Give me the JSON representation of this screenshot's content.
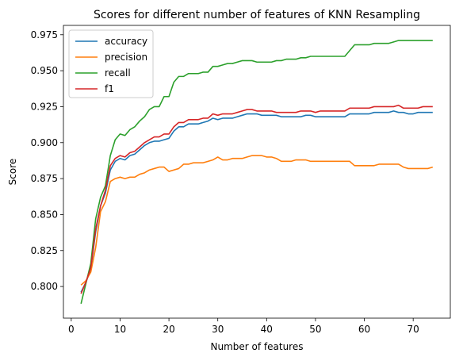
{
  "chart_data": {
    "type": "line",
    "title": "Scores for different number of features of KNN Resampling",
    "xlabel": "Number of features",
    "ylabel": "Score",
    "xlim": [
      -1.6,
      77.6
    ],
    "ylim": [
      0.778,
      0.9815
    ],
    "xticks": [
      0,
      10,
      20,
      30,
      40,
      50,
      60,
      70
    ],
    "yticks": [
      0.8,
      0.825,
      0.85,
      0.875,
      0.9,
      0.925,
      0.95,
      0.975
    ],
    "grid": false,
    "legend_position": "upper-left",
    "x": [
      2,
      3,
      4,
      5,
      6,
      7,
      8,
      9,
      10,
      11,
      12,
      13,
      14,
      15,
      16,
      17,
      18,
      19,
      20,
      21,
      22,
      23,
      24,
      25,
      26,
      27,
      28,
      29,
      30,
      31,
      32,
      33,
      34,
      35,
      36,
      37,
      38,
      39,
      40,
      41,
      42,
      43,
      44,
      45,
      46,
      47,
      48,
      49,
      50,
      51,
      52,
      53,
      54,
      55,
      56,
      57,
      58,
      59,
      60,
      61,
      62,
      63,
      64,
      65,
      66,
      67,
      68,
      69,
      70,
      71,
      72,
      73,
      74
    ],
    "series": [
      {
        "name": "accuracy",
        "color": "#1f77b4",
        "values": [
          0.796,
          0.803,
          0.812,
          0.838,
          0.856,
          0.865,
          0.881,
          0.887,
          0.889,
          0.888,
          0.891,
          0.892,
          0.895,
          0.898,
          0.9,
          0.901,
          0.901,
          0.902,
          0.903,
          0.908,
          0.911,
          0.911,
          0.913,
          0.913,
          0.913,
          0.914,
          0.915,
          0.917,
          0.916,
          0.917,
          0.917,
          0.917,
          0.918,
          0.919,
          0.92,
          0.92,
          0.92,
          0.919,
          0.919,
          0.919,
          0.919,
          0.918,
          0.918,
          0.918,
          0.918,
          0.918,
          0.919,
          0.919,
          0.918,
          0.918,
          0.918,
          0.918,
          0.918,
          0.918,
          0.918,
          0.92,
          0.92,
          0.92,
          0.92,
          0.92,
          0.921,
          0.921,
          0.921,
          0.921,
          0.922,
          0.921,
          0.921,
          0.92,
          0.92,
          0.921,
          0.921,
          0.921,
          0.921
        ]
      },
      {
        "name": "precision",
        "color": "#ff7f0e",
        "values": [
          0.801,
          0.804,
          0.81,
          0.827,
          0.852,
          0.859,
          0.873,
          0.875,
          0.876,
          0.875,
          0.876,
          0.876,
          0.878,
          0.879,
          0.881,
          0.882,
          0.883,
          0.883,
          0.88,
          0.881,
          0.882,
          0.885,
          0.885,
          0.886,
          0.886,
          0.886,
          0.887,
          0.888,
          0.89,
          0.888,
          0.888,
          0.889,
          0.889,
          0.889,
          0.89,
          0.891,
          0.891,
          0.891,
          0.89,
          0.89,
          0.889,
          0.887,
          0.887,
          0.887,
          0.888,
          0.888,
          0.888,
          0.887,
          0.887,
          0.887,
          0.887,
          0.887,
          0.887,
          0.887,
          0.887,
          0.887,
          0.884,
          0.884,
          0.884,
          0.884,
          0.884,
          0.885,
          0.885,
          0.885,
          0.885,
          0.885,
          0.883,
          0.882,
          0.882,
          0.882,
          0.882,
          0.882,
          0.883
        ]
      },
      {
        "name": "recall",
        "color": "#2ca02c",
        "values": [
          0.788,
          0.802,
          0.816,
          0.847,
          0.862,
          0.87,
          0.891,
          0.902,
          0.906,
          0.905,
          0.909,
          0.911,
          0.915,
          0.918,
          0.923,
          0.925,
          0.925,
          0.932,
          0.932,
          0.942,
          0.946,
          0.946,
          0.948,
          0.948,
          0.948,
          0.949,
          0.949,
          0.953,
          0.953,
          0.954,
          0.955,
          0.955,
          0.956,
          0.957,
          0.957,
          0.957,
          0.956,
          0.956,
          0.956,
          0.956,
          0.957,
          0.957,
          0.958,
          0.958,
          0.958,
          0.959,
          0.959,
          0.96,
          0.96,
          0.96,
          0.96,
          0.96,
          0.96,
          0.96,
          0.96,
          0.964,
          0.968,
          0.968,
          0.968,
          0.968,
          0.969,
          0.969,
          0.969,
          0.969,
          0.97,
          0.971,
          0.971,
          0.971,
          0.971,
          0.971,
          0.971,
          0.971,
          0.971
        ]
      },
      {
        "name": "f1",
        "color": "#d62728",
        "values": [
          0.795,
          0.803,
          0.813,
          0.84,
          0.856,
          0.867,
          0.884,
          0.889,
          0.891,
          0.89,
          0.893,
          0.894,
          0.897,
          0.9,
          0.902,
          0.904,
          0.904,
          0.906,
          0.906,
          0.911,
          0.914,
          0.914,
          0.916,
          0.916,
          0.916,
          0.917,
          0.917,
          0.92,
          0.919,
          0.92,
          0.92,
          0.92,
          0.921,
          0.922,
          0.923,
          0.923,
          0.922,
          0.922,
          0.922,
          0.922,
          0.921,
          0.921,
          0.921,
          0.921,
          0.921,
          0.922,
          0.922,
          0.922,
          0.921,
          0.922,
          0.922,
          0.922,
          0.922,
          0.922,
          0.922,
          0.924,
          0.924,
          0.924,
          0.924,
          0.924,
          0.925,
          0.925,
          0.925,
          0.925,
          0.925,
          0.926,
          0.924,
          0.924,
          0.924,
          0.924,
          0.925,
          0.925,
          0.925
        ]
      }
    ]
  }
}
